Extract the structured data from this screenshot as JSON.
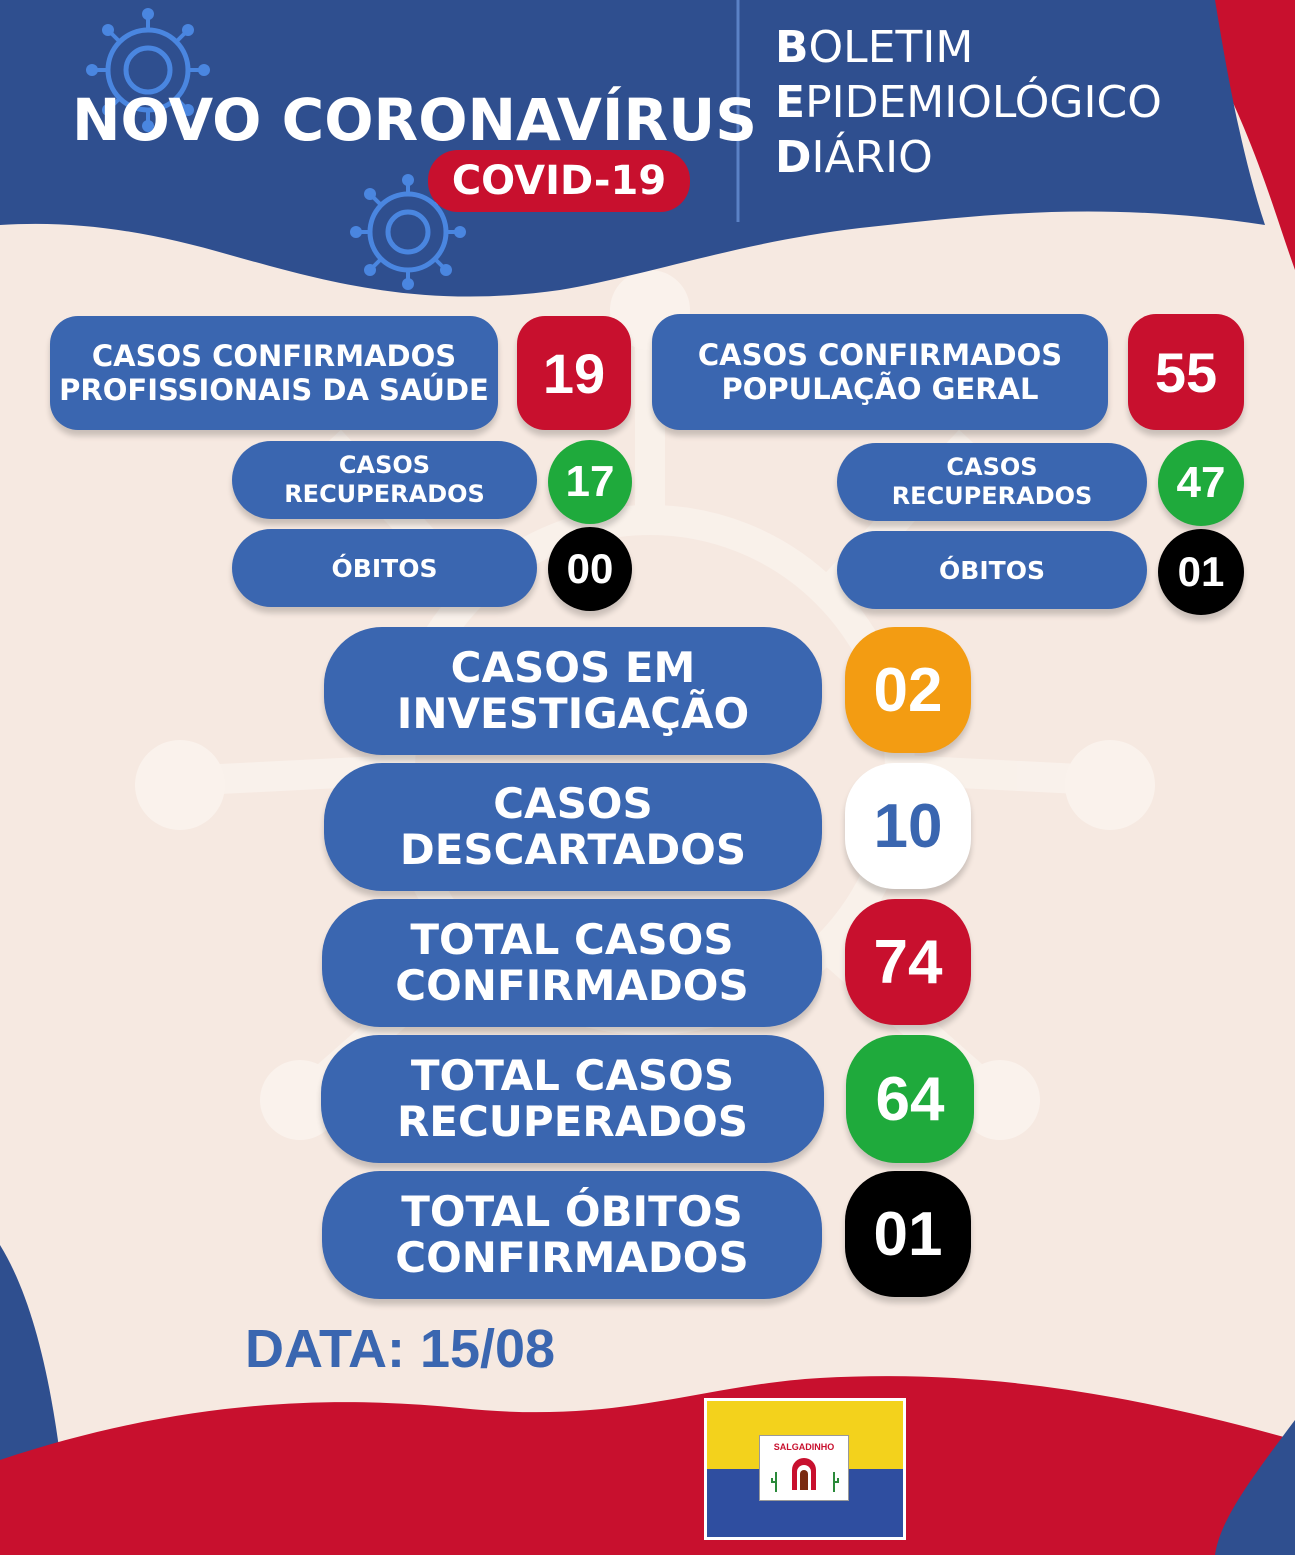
{
  "header": {
    "title": "NOVO CORONAVÍRUS",
    "badge": "COVID-19",
    "bulletin": [
      {
        "initial": "B",
        "rest": "OLETIM"
      },
      {
        "initial": "E",
        "rest": "PIDEMIOLÓGICO"
      },
      {
        "initial": "D",
        "rest": "IÁRIO"
      }
    ]
  },
  "health_workers": {
    "confirmed_line1": "CASOS CONFIRMADOS",
    "confirmed_line2": "PROFISSIONAIS DA SAÚDE",
    "confirmed_value": "19",
    "recovered_line1": "CASOS",
    "recovered_line2": "RECUPERADOS",
    "recovered_value": "17",
    "deaths_label": "ÓBITOS",
    "deaths_value": "00"
  },
  "general_population": {
    "confirmed_line1": "CASOS CONFIRMADOS",
    "confirmed_line2": "POPULAÇÃO GERAL",
    "confirmed_value": "55",
    "recovered_line1": "CASOS",
    "recovered_line2": "RECUPERADOS",
    "recovered_value": "47",
    "deaths_label": "ÓBITOS",
    "deaths_value": "01"
  },
  "totals": {
    "investigation_line1": "CASOS EM",
    "investigation_line2": "INVESTIGAÇÃO",
    "investigation_value": "02",
    "discarded_line1": "CASOS",
    "discarded_line2": "DESCARTADOS",
    "discarded_value": "10",
    "confirmed_line1": "TOTAL CASOS",
    "confirmed_line2": "CONFIRMADOS",
    "confirmed_value": "74",
    "recovered_line1": "TOTAL CASOS",
    "recovered_line2": "RECUPERADOS",
    "recovered_value": "64",
    "deaths_line1": "TOTAL ÓBITOS",
    "deaths_line2": "CONFIRMADOS",
    "deaths_value": "01"
  },
  "footer": {
    "date": "DATA: 15/08",
    "flag_label": "SALGADINHO"
  },
  "colors": {
    "navy": "#2f4f8f",
    "pill_blue": "#3a66b0",
    "red": "#c8102e",
    "green": "#1faa3c",
    "orange": "#f39c12",
    "background": "#f6e9e1"
  }
}
